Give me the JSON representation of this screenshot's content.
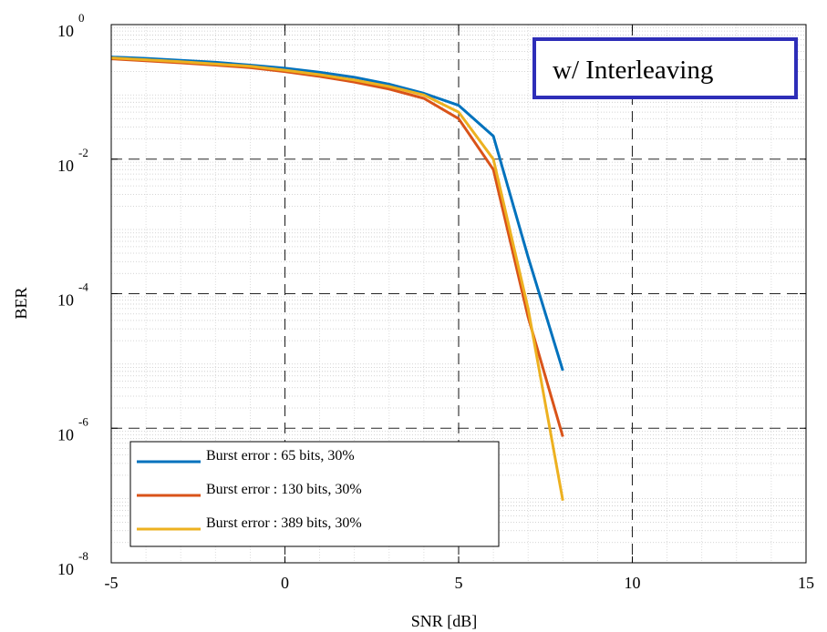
{
  "chart_data": {
    "type": "line",
    "xlabel": "SNR [dB]",
    "ylabel": "BER",
    "xlim": [
      -5,
      15
    ],
    "ylim": [
      1e-08,
      1
    ],
    "yscale": "log",
    "grid": true,
    "minor_grid": true,
    "x_ticks": [
      "-5",
      "0",
      "5",
      "10",
      "15"
    ],
    "y_ticks": [
      {
        "base": "10",
        "exp": "0",
        "value": 1
      },
      {
        "base": "10",
        "exp": "-2",
        "value": 0.01
      },
      {
        "base": "10",
        "exp": "-4",
        "value": 0.0001
      },
      {
        "base": "10",
        "exp": "-6",
        "value": 1e-06
      },
      {
        "base": "10",
        "exp": "-8",
        "value": 1e-08
      }
    ],
    "annotation": "w/ Interleaving",
    "annotation_border_color": "#2e2eb8",
    "legend_position": "bottom-left",
    "x": [
      -5,
      -4,
      -3,
      -2,
      -1,
      0,
      1,
      2,
      3,
      4,
      5,
      6,
      7,
      8
    ],
    "series": [
      {
        "name": "Burst error : 65 bits, 30%",
        "color": "#0072bd",
        "values": [
          0.33,
          0.315,
          0.295,
          0.275,
          0.25,
          0.225,
          0.195,
          0.165,
          0.13,
          0.095,
          0.063,
          0.022,
          0.00035,
          7.2e-06
        ]
      },
      {
        "name": "Burst error : 130 bits, 30%",
        "color": "#d95319",
        "values": [
          0.31,
          0.29,
          0.27,
          0.25,
          0.23,
          0.2,
          0.17,
          0.14,
          0.11,
          0.08,
          0.04,
          0.007,
          4.5e-05,
          7.5e-07
        ]
      },
      {
        "name": "Burst error : 389 bits, 30%",
        "color": "#edb120",
        "values": [
          0.32,
          0.3,
          0.28,
          0.26,
          0.24,
          0.21,
          0.18,
          0.15,
          0.12,
          0.09,
          0.05,
          0.01,
          6e-05,
          8.4e-08
        ]
      }
    ]
  }
}
